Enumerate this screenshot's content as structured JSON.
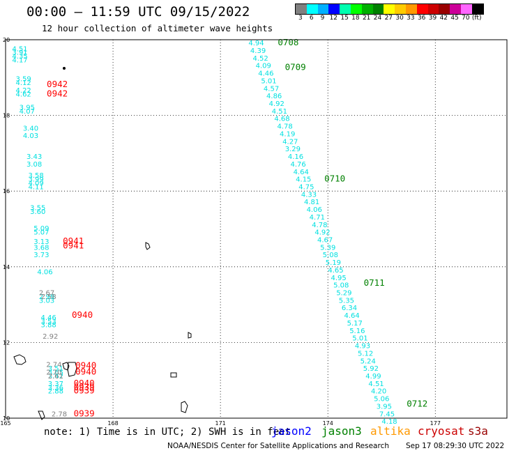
{
  "header": {
    "title": "00:00 – 11:59 UTC 09/15/2022",
    "subtitle": "12 hour collection of altimeter wave heights"
  },
  "legend": {
    "colors": [
      "#808080",
      "#00ffff",
      "#00b0ff",
      "#0000ff",
      "#00ffb0",
      "#00ff00",
      "#00b000",
      "#008000",
      "#ffff00",
      "#ffcc00",
      "#ff9900",
      "#ff0000",
      "#cc0000",
      "#990000",
      "#cc0099",
      "#ff66ff",
      "#000000"
    ],
    "labels": [
      "3",
      "6",
      "9",
      "12",
      "15",
      "18",
      "21",
      "24",
      "27",
      "30",
      "33",
      "36",
      "39",
      "42",
      "45",
      "70",
      "(ft)"
    ]
  },
  "footer": {
    "note": "note: 1) Time is in UTC; 2) SWH is in feet",
    "satellites": [
      {
        "name": "jason2",
        "color": "#0000ff"
      },
      {
        "name": "jason3",
        "color": "#008000"
      },
      {
        "name": "altika",
        "color": "#ff9900"
      },
      {
        "name": "cryosat",
        "color": "#cc0000"
      },
      {
        "name": "s3a",
        "color": "#990000"
      }
    ],
    "credit": "NOAA/NESDIS Center for Satellite Applications and Research",
    "timestamp": "Sep 17 08:29:30 UTC 2022"
  },
  "chart_data": {
    "type": "scatter",
    "title": "00:00 – 11:59 UTC 09/15/2022",
    "subtitle": "12 hour collection of altimeter wave heights",
    "xlim": [
      165,
      179
    ],
    "ylim": [
      10,
      20
    ],
    "x_ticks": [
      165,
      168,
      171,
      174,
      177
    ],
    "y_ticks": [
      10,
      12,
      14,
      16,
      18,
      20
    ],
    "grid": true,
    "colors": {
      "cyan": "#00e0e0",
      "gray": "#808080",
      "green": "#008000",
      "red": "#ff0000"
    },
    "series": [
      {
        "name": "jason3",
        "color": "cyan",
        "points": [
          {
            "lon": 172.0,
            "lat": 19.85,
            "swh": "4.94"
          },
          {
            "lon": 172.05,
            "lat": 19.65,
            "swh": "4.39"
          },
          {
            "lon": 172.12,
            "lat": 19.45,
            "swh": "4.52"
          },
          {
            "lon": 172.2,
            "lat": 19.25,
            "swh": "4.09"
          },
          {
            "lon": 172.27,
            "lat": 19.05,
            "swh": "4.46"
          },
          {
            "lon": 172.35,
            "lat": 18.85,
            "swh": "5.01"
          },
          {
            "lon": 172.42,
            "lat": 18.65,
            "swh": "4.57"
          },
          {
            "lon": 172.5,
            "lat": 18.45,
            "swh": "4.86"
          },
          {
            "lon": 172.57,
            "lat": 18.25,
            "swh": "4.92"
          },
          {
            "lon": 172.65,
            "lat": 18.05,
            "swh": "4.51"
          },
          {
            "lon": 172.72,
            "lat": 17.85,
            "swh": "4.68"
          },
          {
            "lon": 172.8,
            "lat": 17.65,
            "swh": "4.78"
          },
          {
            "lon": 172.87,
            "lat": 17.45,
            "swh": "4.19"
          },
          {
            "lon": 172.95,
            "lat": 17.25,
            "swh": "4.27"
          },
          {
            "lon": 173.02,
            "lat": 17.05,
            "swh": "3.29"
          },
          {
            "lon": 173.1,
            "lat": 16.85,
            "swh": "4.16"
          },
          {
            "lon": 173.17,
            "lat": 16.65,
            "swh": "4.76"
          },
          {
            "lon": 173.25,
            "lat": 16.45,
            "swh": "4.64"
          },
          {
            "lon": 173.32,
            "lat": 16.25,
            "swh": "4.15"
          },
          {
            "lon": 173.4,
            "lat": 16.05,
            "swh": "4.75"
          },
          {
            "lon": 173.47,
            "lat": 15.85,
            "swh": "4.33"
          },
          {
            "lon": 173.55,
            "lat": 15.65,
            "swh": "4.81"
          },
          {
            "lon": 173.62,
            "lat": 15.45,
            "swh": "4.06"
          },
          {
            "lon": 173.7,
            "lat": 15.25,
            "swh": "4.71"
          },
          {
            "lon": 173.77,
            "lat": 15.05,
            "swh": "4.78"
          },
          {
            "lon": 173.85,
            "lat": 14.85,
            "swh": "4.92"
          },
          {
            "lon": 173.92,
            "lat": 14.65,
            "swh": "4.67"
          },
          {
            "lon": 174.0,
            "lat": 14.45,
            "swh": "5.39"
          },
          {
            "lon": 174.07,
            "lat": 14.25,
            "swh": "5.08"
          },
          {
            "lon": 174.15,
            "lat": 14.05,
            "swh": "5.19"
          },
          {
            "lon": 174.22,
            "lat": 13.85,
            "swh": "4.65"
          },
          {
            "lon": 174.3,
            "lat": 13.65,
            "swh": "4.95"
          },
          {
            "lon": 174.37,
            "lat": 13.45,
            "swh": "5.08"
          },
          {
            "lon": 174.45,
            "lat": 13.25,
            "swh": "5.29"
          },
          {
            "lon": 174.52,
            "lat": 13.05,
            "swh": "5.35"
          },
          {
            "lon": 174.6,
            "lat": 12.85,
            "swh": "6.34"
          },
          {
            "lon": 174.67,
            "lat": 12.65,
            "swh": "4.64"
          },
          {
            "lon": 174.75,
            "lat": 12.45,
            "swh": "5.17"
          },
          {
            "lon": 174.82,
            "lat": 12.25,
            "swh": "5.16"
          },
          {
            "lon": 174.9,
            "lat": 12.05,
            "swh": "5.01"
          },
          {
            "lon": 174.97,
            "lat": 11.85,
            "swh": "4.93"
          },
          {
            "lon": 175.05,
            "lat": 11.65,
            "swh": "5.12"
          },
          {
            "lon": 175.12,
            "lat": 11.45,
            "swh": "5.24"
          },
          {
            "lon": 175.2,
            "lat": 11.25,
            "swh": "5.92"
          },
          {
            "lon": 175.27,
            "lat": 11.05,
            "swh": "4.99"
          },
          {
            "lon": 175.35,
            "lat": 10.85,
            "swh": "4.51"
          },
          {
            "lon": 175.42,
            "lat": 10.65,
            "swh": "4.20"
          },
          {
            "lon": 175.5,
            "lat": 10.45,
            "swh": "5.06"
          },
          {
            "lon": 175.57,
            "lat": 10.25,
            "swh": "3.95"
          },
          {
            "lon": 175.65,
            "lat": 10.05,
            "swh": "7.45"
          },
          {
            "lon": 175.72,
            "lat": 9.85,
            "swh": "4.18"
          }
        ]
      },
      {
        "name": "s3a",
        "color": "cyan",
        "points": [
          {
            "lon": 165.4,
            "lat": 19.7,
            "swh": "4.51"
          },
          {
            "lon": 165.4,
            "lat": 19.6,
            "swh": "3.91"
          },
          {
            "lon": 165.4,
            "lat": 19.5,
            "swh": "4.35"
          },
          {
            "lon": 165.4,
            "lat": 19.4,
            "swh": "4.17"
          },
          {
            "lon": 165.5,
            "lat": 18.9,
            "swh": "3.59"
          },
          {
            "lon": 165.5,
            "lat": 18.8,
            "swh": "4.12"
          },
          {
            "lon": 165.5,
            "lat": 18.6,
            "swh": "4.22"
          },
          {
            "lon": 165.5,
            "lat": 18.5,
            "swh": "4.62"
          },
          {
            "lon": 165.6,
            "lat": 18.15,
            "swh": "3.95"
          },
          {
            "lon": 165.6,
            "lat": 18.05,
            "swh": "4.07"
          },
          {
            "lon": 165.7,
            "lat": 17.6,
            "swh": "3.40"
          },
          {
            "lon": 165.7,
            "lat": 17.4,
            "swh": "4.03"
          },
          {
            "lon": 165.8,
            "lat": 16.85,
            "swh": "3.43"
          },
          {
            "lon": 165.8,
            "lat": 16.65,
            "swh": "3.08"
          },
          {
            "lon": 165.85,
            "lat": 16.35,
            "swh": "3.58"
          },
          {
            "lon": 165.85,
            "lat": 16.25,
            "swh": "3.99"
          },
          {
            "lon": 165.85,
            "lat": 16.15,
            "swh": "4.09"
          },
          {
            "lon": 165.85,
            "lat": 16.05,
            "swh": "4.11"
          },
          {
            "lon": 165.9,
            "lat": 15.5,
            "swh": "3.55"
          },
          {
            "lon": 165.9,
            "lat": 15.4,
            "swh": "3.60"
          },
          {
            "lon": 166.0,
            "lat": 14.95,
            "swh": "5.09"
          },
          {
            "lon": 166.0,
            "lat": 14.85,
            "swh": "5.07"
          },
          {
            "lon": 166.0,
            "lat": 14.6,
            "swh": "3.13"
          },
          {
            "lon": 166.0,
            "lat": 14.45,
            "swh": "3.68"
          },
          {
            "lon": 166.0,
            "lat": 14.25,
            "swh": "3.73"
          },
          {
            "lon": 166.1,
            "lat": 13.8,
            "swh": "4.06"
          },
          {
            "lon": 166.15,
            "lat": 13.15,
            "swh": "2.98"
          },
          {
            "lon": 166.15,
            "lat": 13.05,
            "swh": "3.03"
          },
          {
            "lon": 166.2,
            "lat": 12.6,
            "swh": "4.46"
          },
          {
            "lon": 166.2,
            "lat": 12.5,
            "swh": "3.53"
          },
          {
            "lon": 166.2,
            "lat": 12.4,
            "swh": "3.88"
          },
          {
            "lon": 166.4,
            "lat": 11.25,
            "swh": "3.51"
          },
          {
            "lon": 166.4,
            "lat": 11.15,
            "swh": "3.65"
          },
          {
            "lon": 166.4,
            "lat": 11.05,
            "swh": "3.42"
          },
          {
            "lon": 166.4,
            "lat": 10.85,
            "swh": "3.37"
          },
          {
            "lon": 166.4,
            "lat": 10.75,
            "swh": "3.36"
          },
          {
            "lon": 166.4,
            "lat": 10.65,
            "swh": "2.88"
          }
        ]
      },
      {
        "name": "s3a-low",
        "color": "gray",
        "points": [
          {
            "lon": 166.15,
            "lat": 13.25,
            "swh": "2.67"
          },
          {
            "lon": 166.2,
            "lat": 13.15,
            "swh": "2.58"
          },
          {
            "lon": 166.25,
            "lat": 12.1,
            "swh": "2.92"
          },
          {
            "lon": 166.35,
            "lat": 11.35,
            "swh": "2.74"
          },
          {
            "lon": 166.35,
            "lat": 11.15,
            "swh": "2.70"
          },
          {
            "lon": 166.4,
            "lat": 11.05,
            "swh": "2.61"
          },
          {
            "lon": 166.5,
            "lat": 10.05,
            "swh": "2.78"
          }
        ]
      }
    ],
    "time_labels": [
      {
        "lon": 172.6,
        "lat": 19.85,
        "text": "0708",
        "color": "green"
      },
      {
        "lon": 172.8,
        "lat": 19.2,
        "text": "0709",
        "color": "green"
      },
      {
        "lon": 173.9,
        "lat": 16.25,
        "text": "0710",
        "color": "green"
      },
      {
        "lon": 175.0,
        "lat": 13.5,
        "text": "0711",
        "color": "green"
      },
      {
        "lon": 176.2,
        "lat": 10.3,
        "text": "0712",
        "color": "green"
      },
      {
        "lon": 166.15,
        "lat": 18.75,
        "text": "0942",
        "color": "red"
      },
      {
        "lon": 166.15,
        "lat": 18.5,
        "text": "0942",
        "color": "red"
      },
      {
        "lon": 166.6,
        "lat": 14.6,
        "text": "0941",
        "color": "red"
      },
      {
        "lon": 166.6,
        "lat": 14.48,
        "text": "0941",
        "color": "red"
      },
      {
        "lon": 166.85,
        "lat": 12.65,
        "text": "0940",
        "color": "red"
      },
      {
        "lon": 166.95,
        "lat": 11.32,
        "text": "0940",
        "color": "red"
      },
      {
        "lon": 166.95,
        "lat": 11.15,
        "text": "0940",
        "color": "red"
      },
      {
        "lon": 166.9,
        "lat": 10.85,
        "text": "0940",
        "color": "red"
      },
      {
        "lon": 166.9,
        "lat": 10.75,
        "text": "0939",
        "color": "red"
      },
      {
        "lon": 166.9,
        "lat": 10.65,
        "text": "0939",
        "color": "red"
      },
      {
        "lon": 166.9,
        "lat": 10.05,
        "text": "0939",
        "color": "red"
      }
    ]
  }
}
